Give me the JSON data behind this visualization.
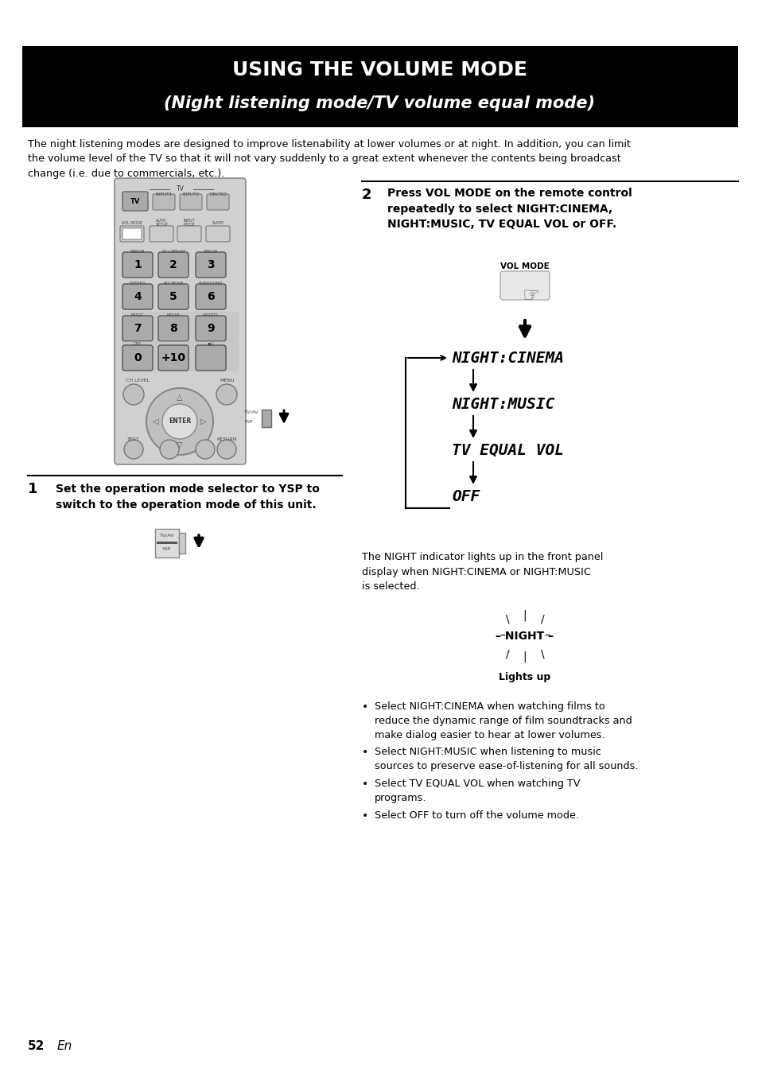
{
  "title_line1": "USING THE VOLUME MODE",
  "title_line2": "(Night listening mode/TV volume equal mode)",
  "title_bg": "#000000",
  "title_fg": "#ffffff",
  "page_bg": "#ffffff",
  "intro_text": "The night listening modes are designed to improve listenability at lower volumes or at night. In addition, you can limit\nthe volume level of the TV so that it will not vary suddenly to a great extent whenever the contents being broadcast\nchange (i.e. due to commercials, etc.).",
  "step1_number": "1",
  "step1_text": "Set the operation mode selector to YSP to\nswitch to the operation mode of this unit.",
  "step2_number": "2",
  "step2_text": "Press VOL MODE on the remote control\nrepeatedly to select NIGHT:CINEMA,\nNIGHT:MUSIC, TV EQUAL VOL or OFF.",
  "night_indicator_text": "The NIGHT indicator lights up in the front panel\ndisplay when NIGHT:CINEMA or NIGHT:MUSIC\nis selected.",
  "lights_up_label": "Lights up",
  "night_label": "NIGHT",
  "bullet1": "Select NIGHT:CINEMA when watching films to\nreduce the dynamic range of film soundtracks and\nmake dialog easier to hear at lower volumes.",
  "bullet2": "Select NIGHT:MUSIC when listening to music\nsources to preserve ease-of-listening for all sounds.",
  "bullet3": "Select TV EQUAL VOL when watching TV\nprograms.",
  "bullet4": "Select OFF to turn off the volume mode.",
  "page_number": "52",
  "page_suffix": "En",
  "vol_mode_label": "VOL MODE",
  "sequence": [
    "NIGHT:CINEMA",
    "NIGHT:MUSIC",
    "TV EQUAL VOL",
    "OFF"
  ]
}
